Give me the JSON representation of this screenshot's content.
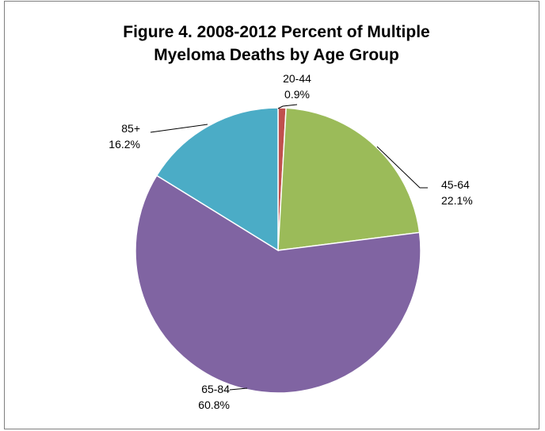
{
  "chart_data": {
    "type": "pie",
    "title_lines": [
      "Figure 4.  2008-2012 Percent of Multiple",
      "Myeloma Deaths by Age Group"
    ],
    "slices": [
      {
        "category": "20-44",
        "value": 0.9,
        "label": "0.9%",
        "color": "#c0504d"
      },
      {
        "category": "45-64",
        "value": 22.1,
        "label": "22.1%",
        "color": "#9bbb59"
      },
      {
        "category": "65-84",
        "value": 60.8,
        "label": "60.8%",
        "color": "#8064a2"
      },
      {
        "category": "85+",
        "value": 16.2,
        "label": "16.2%",
        "color": "#4bacc6"
      }
    ],
    "start_angle_deg": 0,
    "direction": "clockwise",
    "legend": "none",
    "data_labels": "outside with leader lines"
  }
}
